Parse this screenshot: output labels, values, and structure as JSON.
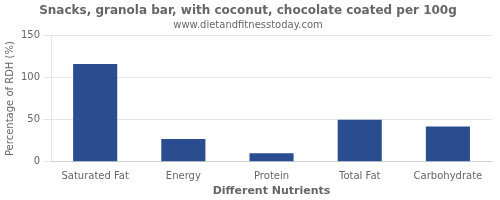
{
  "chart_data": {
    "type": "bar",
    "title": "Snacks, granola bar, with coconut, chocolate coated per 100g",
    "subtitle": "www.dietandfitnesstoday.com",
    "xlabel": "Different Nutrients",
    "ylabel": "Percentage of RDH (%)",
    "categories": [
      "Saturated Fat",
      "Energy",
      "Protein",
      "Total Fat",
      "Carbohydrate"
    ],
    "values": [
      116,
      27,
      10,
      50,
      42
    ],
    "color": "#2a4d8f",
    "ylim": [
      0,
      150
    ],
    "yticks": [
      0,
      50,
      100,
      150
    ],
    "grid": true
  }
}
